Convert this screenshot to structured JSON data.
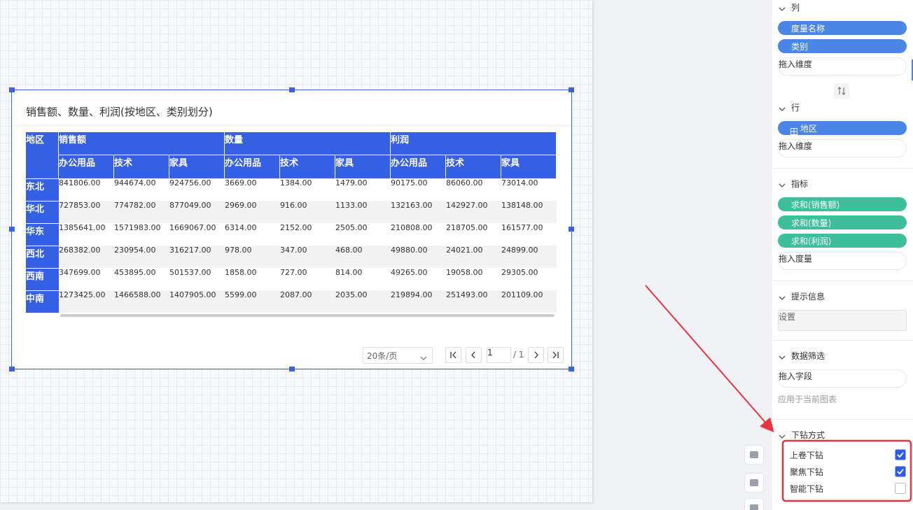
{
  "chart": {
    "title": "销售额、数量、利润(按地区、类别划分)",
    "corner": "地区",
    "groups": [
      "销售额",
      "数量",
      "利润"
    ],
    "subheaders": [
      "办公用品",
      "技术",
      "家具",
      "办公用品",
      "技术",
      "家具",
      "办公用品",
      "技术",
      "家具"
    ],
    "header_color": "#3560e6",
    "rows": [
      {
        "region": "东北",
        "cells": [
          "841806.00",
          "944674.00",
          "924756.00",
          "3669.00",
          "1384.00",
          "1479.00",
          "90175.00",
          "86060.00",
          "73014.00"
        ]
      },
      {
        "region": "华北",
        "cells": [
          "727853.00",
          "774782.00",
          "877049.00",
          "2969.00",
          "916.00",
          "1133.00",
          "132163.00",
          "142927.00",
          "138148.00"
        ]
      },
      {
        "region": "华东",
        "cells": [
          "1385641.00",
          "1571983.00",
          "1669067.00",
          "6314.00",
          "2152.00",
          "2505.00",
          "210808.00",
          "218705.00",
          "161577.00"
        ]
      },
      {
        "region": "西北",
        "cells": [
          "268382.00",
          "230954.00",
          "316217.00",
          "978.00",
          "347.00",
          "468.00",
          "49880.00",
          "24021.00",
          "24899.00"
        ]
      },
      {
        "region": "西南",
        "cells": [
          "347699.00",
          "453895.00",
          "501537.00",
          "1858.00",
          "727.00",
          "814.00",
          "49265.00",
          "19058.00",
          "29305.00"
        ]
      },
      {
        "region": "中南",
        "cells": [
          "1273425.00",
          "1466588.00",
          "1407905.00",
          "5599.00",
          "2087.00",
          "2035.00",
          "219894.00",
          "251493.00",
          "201109.00"
        ]
      }
    ],
    "page_size": "20条/页",
    "page": "1",
    "page_total": "/ 1"
  },
  "panel": {
    "sections": [
      {
        "title": "列",
        "pills": [
          {
            "label": "度量名称",
            "color": "#4a86e8"
          },
          {
            "label": "类别",
            "color": "#4a86e8"
          }
        ],
        "drop": "拖入维度"
      },
      {
        "title": "行",
        "pills": [
          {
            "label": "地区",
            "color": "#4a86e8",
            "icon": "grid"
          }
        ],
        "drop": "拖入维度"
      },
      {
        "title": "指标",
        "pills": [
          {
            "label": "求和(销售额)",
            "color": "#3dbf9c"
          },
          {
            "label": "求和(数量)",
            "color": "#3dbf9c"
          },
          {
            "label": "求和(利润)",
            "color": "#3dbf9c"
          }
        ],
        "drop": "拖入度量"
      },
      {
        "title": "提示信息",
        "button": "设置"
      },
      {
        "title": "数据筛选",
        "drop": "拖入字段",
        "note": "应用于当前图表"
      },
      {
        "title": "下钻方式",
        "options": [
          {
            "label": "上卷下钻",
            "checked": true
          },
          {
            "label": "聚焦下钻",
            "checked": true
          },
          {
            "label": "智能下钻",
            "checked": false
          }
        ]
      }
    ]
  }
}
